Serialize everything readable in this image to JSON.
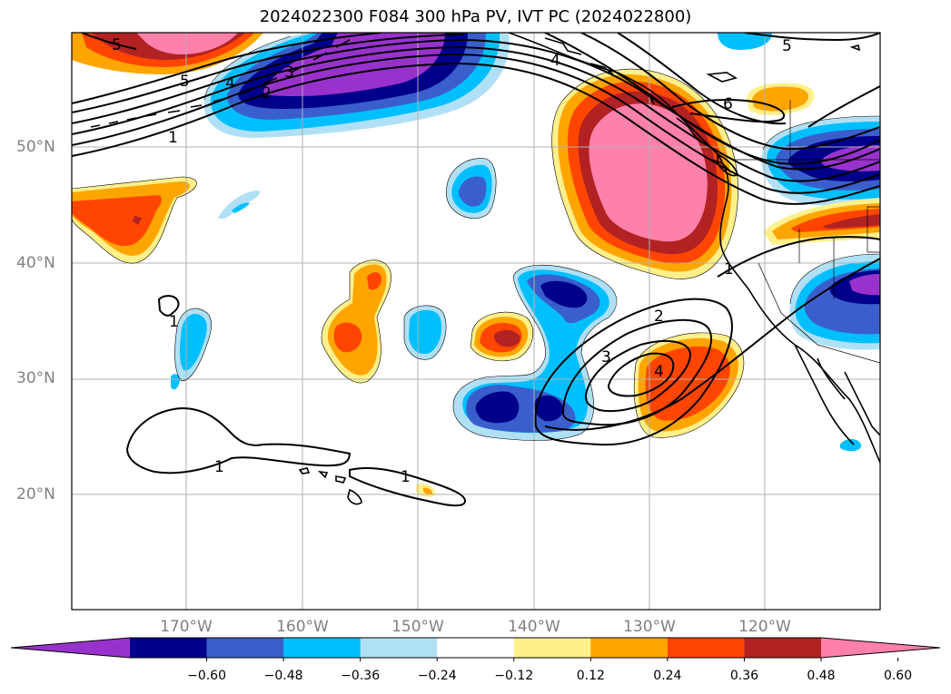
{
  "title": "2024022300 F084 300 hPa PV, IVT PC (2024022800)",
  "map": {
    "lat_labels": [
      "50°N",
      "40°N",
      "30°N",
      "20°N"
    ],
    "lon_labels": [
      "170°W",
      "160°W",
      "150°W",
      "140°W",
      "130°W",
      "120°W"
    ],
    "contour_labels": [
      "5",
      "5",
      "4",
      "3",
      "2",
      "1",
      "4",
      "5",
      "6",
      "1",
      "2",
      "3",
      "4",
      "1",
      "1",
      "1"
    ]
  },
  "colorbar": {
    "ticks": [
      "−0.60",
      "−0.48",
      "−0.36",
      "−0.24",
      "−0.12",
      "0.12",
      "0.24",
      "0.36",
      "0.48",
      "0.60"
    ],
    "colors": [
      "#9932cc",
      "#00008b",
      "#3a5fcd",
      "#00bfff",
      "#b0e0f5",
      "#ffffff",
      "#fff08a",
      "#ffa500",
      "#ff4500",
      "#b22222",
      "#ff80ab"
    ]
  }
}
